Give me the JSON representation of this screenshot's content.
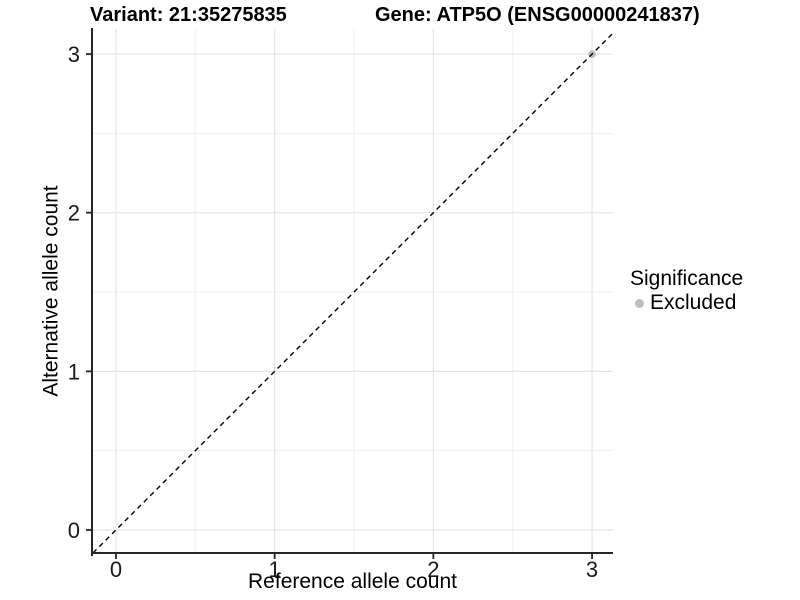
{
  "chart_data": {
    "type": "scatter",
    "title_left": "Variant: 21:35275835",
    "title_right": "Gene: ATP5O (ENSG00000241837)",
    "xlabel": "Reference allele count",
    "ylabel": "Alternative allele count",
    "xlim": [
      -0.151,
      3.132
    ],
    "ylim": [
      -0.145,
      3.158
    ],
    "x_major_ticks": [
      0,
      1,
      2,
      3
    ],
    "y_major_ticks": [
      0,
      1,
      2,
      3
    ],
    "x_minor_ticks": [
      0.5,
      1.5,
      2.5
    ],
    "y_minor_ticks": [
      0.5,
      1.5,
      2.5
    ],
    "grid": true,
    "points": [
      {
        "x": 3,
        "y": 3,
        "series": "Excluded",
        "color": "#bebebe",
        "radius": 3.8
      }
    ],
    "reference_line": {
      "style": "dashed",
      "slope": 1,
      "intercept": 0,
      "color": "#000000"
    },
    "legend": {
      "title": "Significance",
      "position": "right",
      "items": [
        {
          "label": "Excluded",
          "color": "#bebebe"
        }
      ]
    },
    "colors": {
      "grid_major": "#e4e4e4",
      "grid_minor": "#f1f1f1",
      "axis_line": "#262626",
      "tick_label": "#1a1a1a",
      "panel_bg": "#ffffff"
    }
  }
}
